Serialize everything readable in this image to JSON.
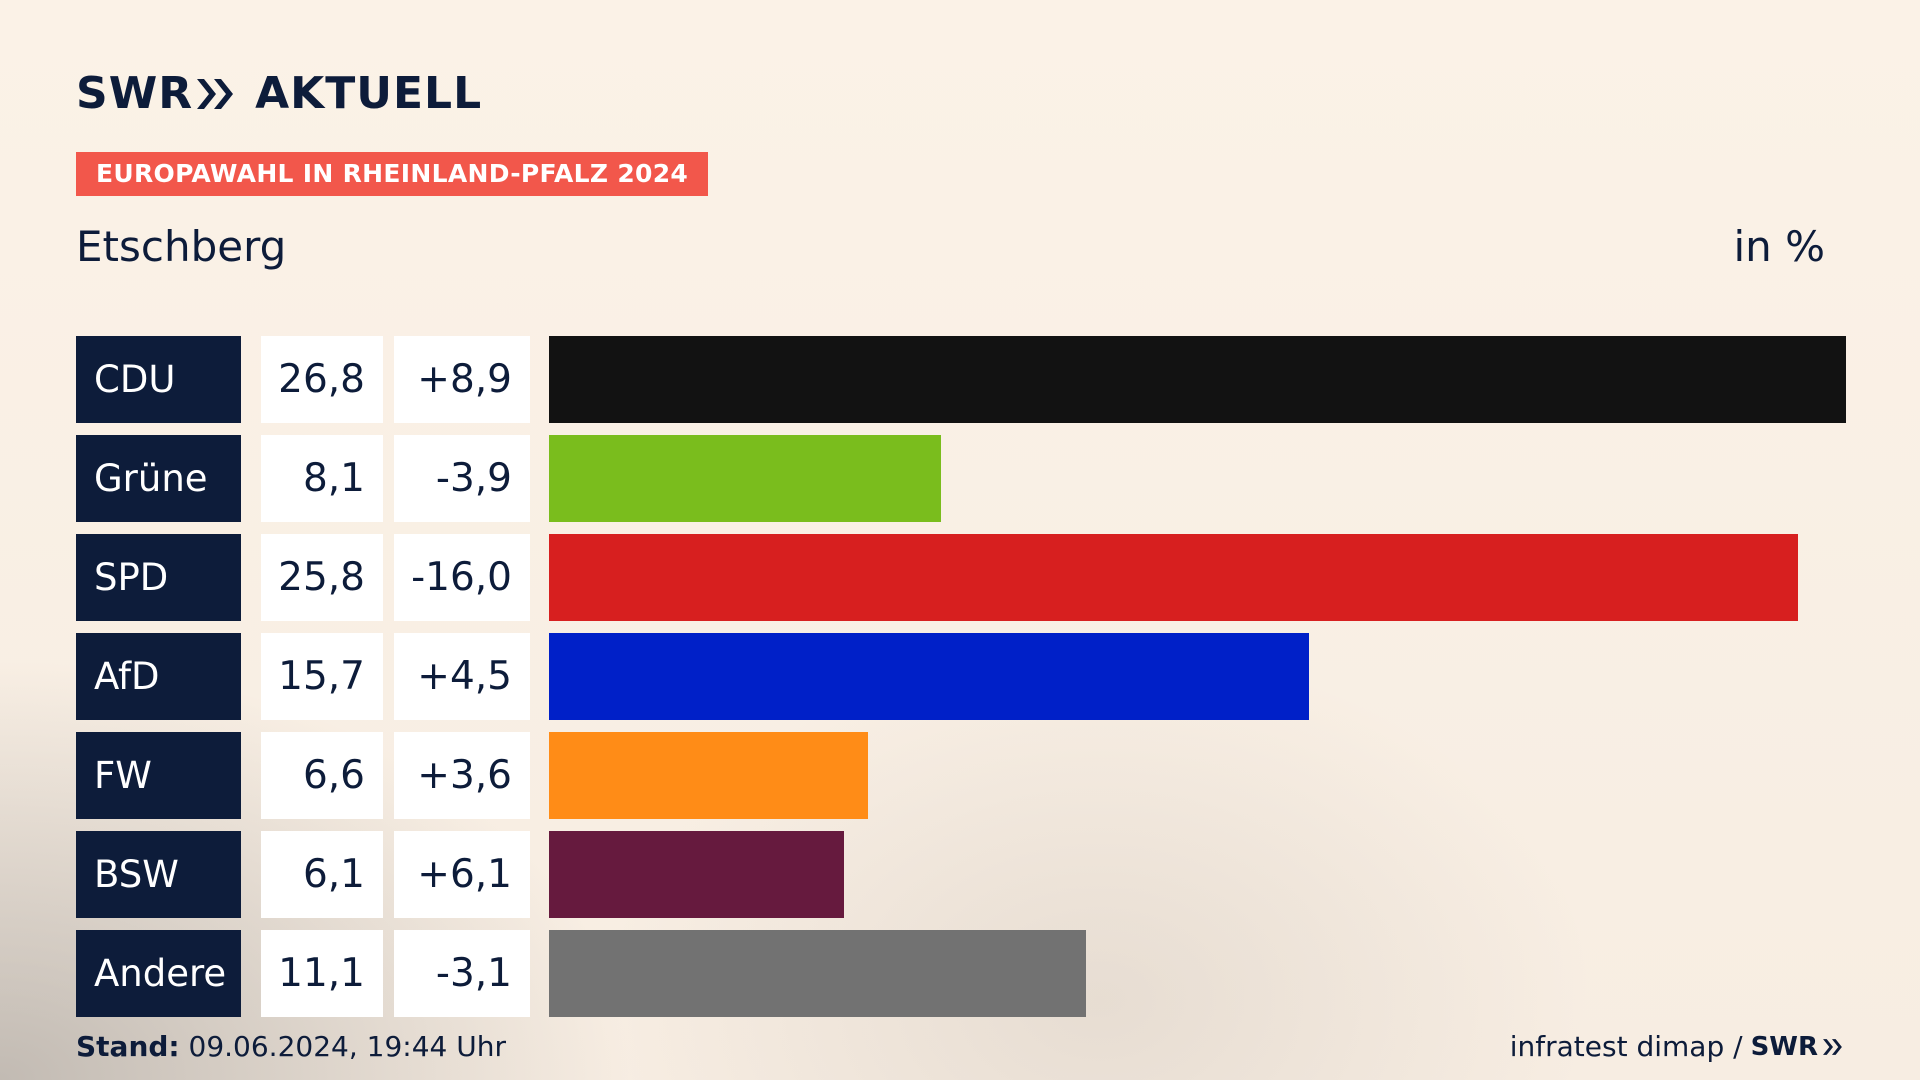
{
  "header": {
    "logo_swr": "SWR",
    "logo_aktuell": "AKTUELL",
    "badge": "EUROPAWAHL IN RHEINLAND-PFALZ 2024",
    "place": "Etschberg",
    "unit": "in %"
  },
  "chart_data": {
    "type": "bar",
    "orientation": "horizontal",
    "title": "EUROPAWAHL IN RHEINLAND-PFALZ 2024",
    "subtitle": "Etschberg",
    "unit": "in %",
    "categories": [
      "CDU",
      "Grüne",
      "SPD",
      "AfD",
      "FW",
      "BSW",
      "Andere"
    ],
    "values": [
      26.8,
      8.1,
      25.8,
      15.7,
      6.6,
      6.1,
      11.1
    ],
    "value_labels": [
      "26,8",
      "8,1",
      "25,8",
      "15,7",
      "6,6",
      "6,1",
      "11,1"
    ],
    "diff_labels": [
      "+8,9",
      "-3,9",
      "-16,0",
      "+4,5",
      "+3,6",
      "+6,1",
      "-3,1"
    ],
    "diffs": [
      8.9,
      -3.9,
      -16.0,
      4.5,
      3.6,
      6.1,
      -3.1
    ],
    "colors": [
      "#121212",
      "#7abd1d",
      "#d71f1f",
      "#0020c8",
      "#ff8c17",
      "#661a3e",
      "#727272"
    ],
    "xlim": [
      0,
      26.8
    ],
    "grid": false
  },
  "footer": {
    "stand_label": "Stand:",
    "stand_value": " 09.06.2024, 19:44 Uhr",
    "source": "infratest dimap /",
    "source_logo": "SWR"
  }
}
